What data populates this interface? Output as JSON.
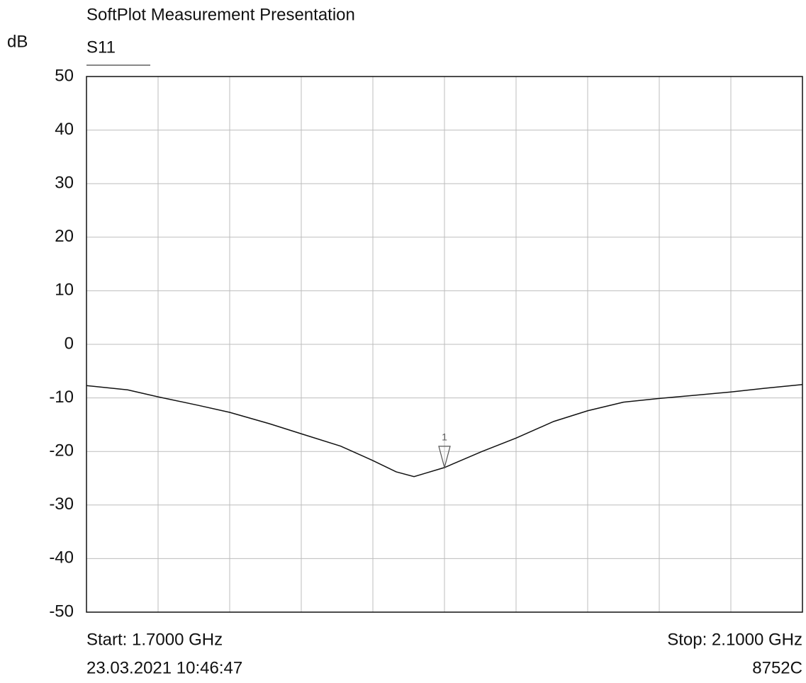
{
  "chart_data": {
    "type": "line",
    "title": "SoftPlot Measurement Presentation",
    "y_label": "dB",
    "trace_label": "S11",
    "start_label": "Start: 1.7000 GHz",
    "stop_label": "Stop: 2.1000 GHz",
    "timestamp": "23.03.2021 10:46:47",
    "instrument": "8752C",
    "xlim": [
      1.7,
      2.1
    ],
    "xgrid": [
      1.74,
      1.78,
      1.82,
      1.86,
      1.9,
      1.94,
      1.98,
      2.02,
      2.06
    ],
    "ylim": [
      -50,
      50
    ],
    "yticks": [
      50,
      40,
      30,
      20,
      10,
      0,
      -10,
      -20,
      -30,
      -40,
      -50
    ],
    "grid": true,
    "x": [
      1.7,
      1.723,
      1.74,
      1.7626,
      1.78,
      1.802,
      1.82,
      1.842,
      1.86,
      1.873,
      1.883,
      1.889,
      1.9,
      1.921,
      1.94,
      1.961,
      1.98,
      2.0,
      2.02,
      2.04,
      2.06,
      2.079,
      2.1
    ],
    "series": [
      {
        "name": "S11",
        "color": "#111111",
        "values": [
          -7.7,
          -8.5,
          -9.8,
          -11.4,
          -12.7,
          -14.8,
          -16.7,
          -19.0,
          -21.7,
          -23.8,
          -24.7,
          -24.1,
          -23.0,
          -20.0,
          -17.5,
          -14.4,
          -12.4,
          -10.8,
          -10.1,
          -9.5,
          -8.9,
          -8.2,
          -7.5
        ]
      }
    ],
    "marker": {
      "label": "1",
      "x": 1.9,
      "value": -23
    }
  }
}
